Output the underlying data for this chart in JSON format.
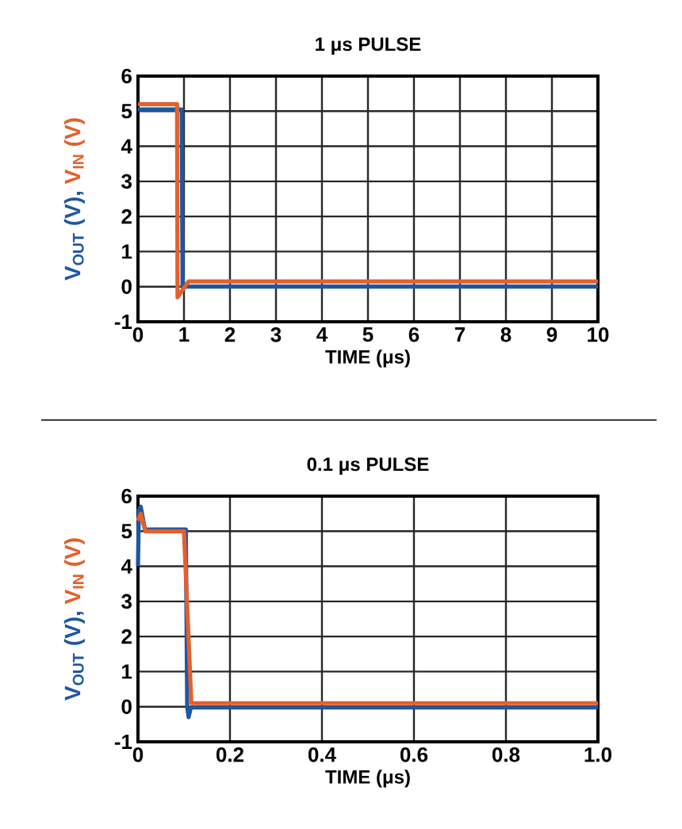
{
  "chart_data": [
    {
      "type": "line",
      "title": "1 μs PULSE",
      "xlabel": "TIME (μs)",
      "annotations": [
        ","
      ],
      "xlim": [
        0,
        10
      ],
      "ylim": [
        -1,
        6
      ],
      "xticks": [
        0,
        1,
        2,
        3,
        4,
        5,
        6,
        7,
        8,
        9,
        10
      ],
      "yticks": [
        6,
        5,
        4,
        3,
        2,
        1,
        0,
        -1
      ],
      "grid": true,
      "series": [
        {
          "name": "V$_{OUT}$ (V)",
          "color": "#1f57a0",
          "x": [
            0,
            0.95,
            0.97,
            10
          ],
          "values": [
            5.05,
            5.05,
            0,
            0
          ]
        },
        {
          "name": "V$_{IN}$ (V)",
          "color": "#e4602c",
          "x": [
            0,
            0.85,
            0.86,
            1.1,
            10
          ],
          "values": [
            5.2,
            5.2,
            -0.3,
            0.15,
            0.15
          ]
        }
      ]
    },
    {
      "type": "line",
      "title": "0.1 μs PULSE",
      "xlabel": "TIME (μs)",
      "annotations": [
        ","
      ],
      "xlim": [
        0,
        1
      ],
      "ylim": [
        -1,
        6
      ],
      "xticks": [
        0,
        {
          "value": 0.2,
          "label": "0.2"
        },
        {
          "value": 0.4,
          "label": "0.4"
        },
        {
          "value": 0.6,
          "label": "0.6"
        },
        {
          "value": 0.8,
          "label": "0.8"
        },
        {
          "value": 1,
          "label": "1.0"
        }
      ],
      "yticks": [
        6,
        5,
        4,
        3,
        2,
        1,
        0,
        -1
      ],
      "grid": true,
      "series": [
        {
          "name": "V$_{OUT}$ (V)",
          "color": "#1f57a0",
          "x": [
            0,
            0.002,
            0.006,
            0.015,
            0.104,
            0.107,
            0.11,
            0.115,
            1
          ],
          "values": [
            4.0,
            5.6,
            5.7,
            5.05,
            5.05,
            0,
            -0.3,
            -0.02,
            -0.02
          ]
        },
        {
          "name": "V$_{IN}$ (V)",
          "color": "#e4602c",
          "x": [
            0,
            0.006,
            0.016,
            0.1,
            0.116,
            1
          ],
          "values": [
            5.3,
            5.5,
            5.0,
            5.0,
            0.1,
            0.1
          ]
        }
      ]
    }
  ]
}
